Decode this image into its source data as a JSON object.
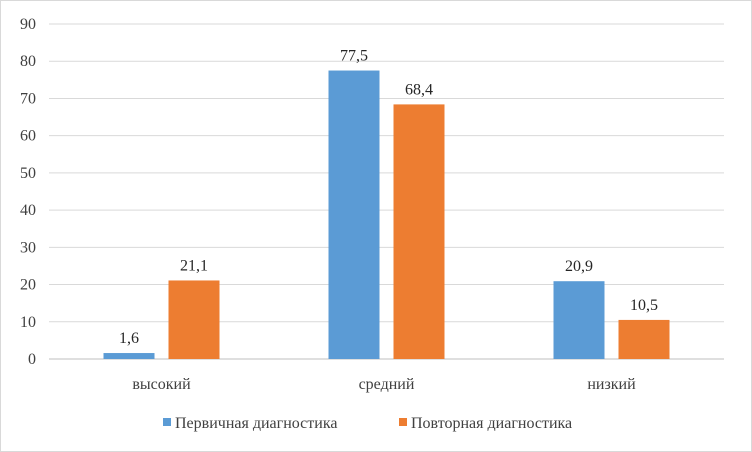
{
  "chart_data": {
    "type": "bar",
    "categories": [
      "высокий",
      "средний",
      "низкий"
    ],
    "series": [
      {
        "name": "Первичная диагностика",
        "values": [
          1.6,
          77.5,
          20.9
        ],
        "labels": [
          "1,6",
          "77,5",
          "20,9"
        ],
        "color": "#5b9bd5"
      },
      {
        "name": "Повторная диагностика",
        "values": [
          21.1,
          68.4,
          10.5
        ],
        "labels": [
          "21,1",
          "68,4",
          "10,5"
        ],
        "color": "#ed7d31"
      }
    ],
    "title": "",
    "xlabel": "",
    "ylabel": "",
    "ylim": [
      0,
      90
    ],
    "yticks": [
      0,
      10,
      20,
      30,
      40,
      50,
      60,
      70,
      80,
      90
    ],
    "grid": true,
    "gridline_color": "#d9d9d9",
    "legend_position": "bottom"
  }
}
